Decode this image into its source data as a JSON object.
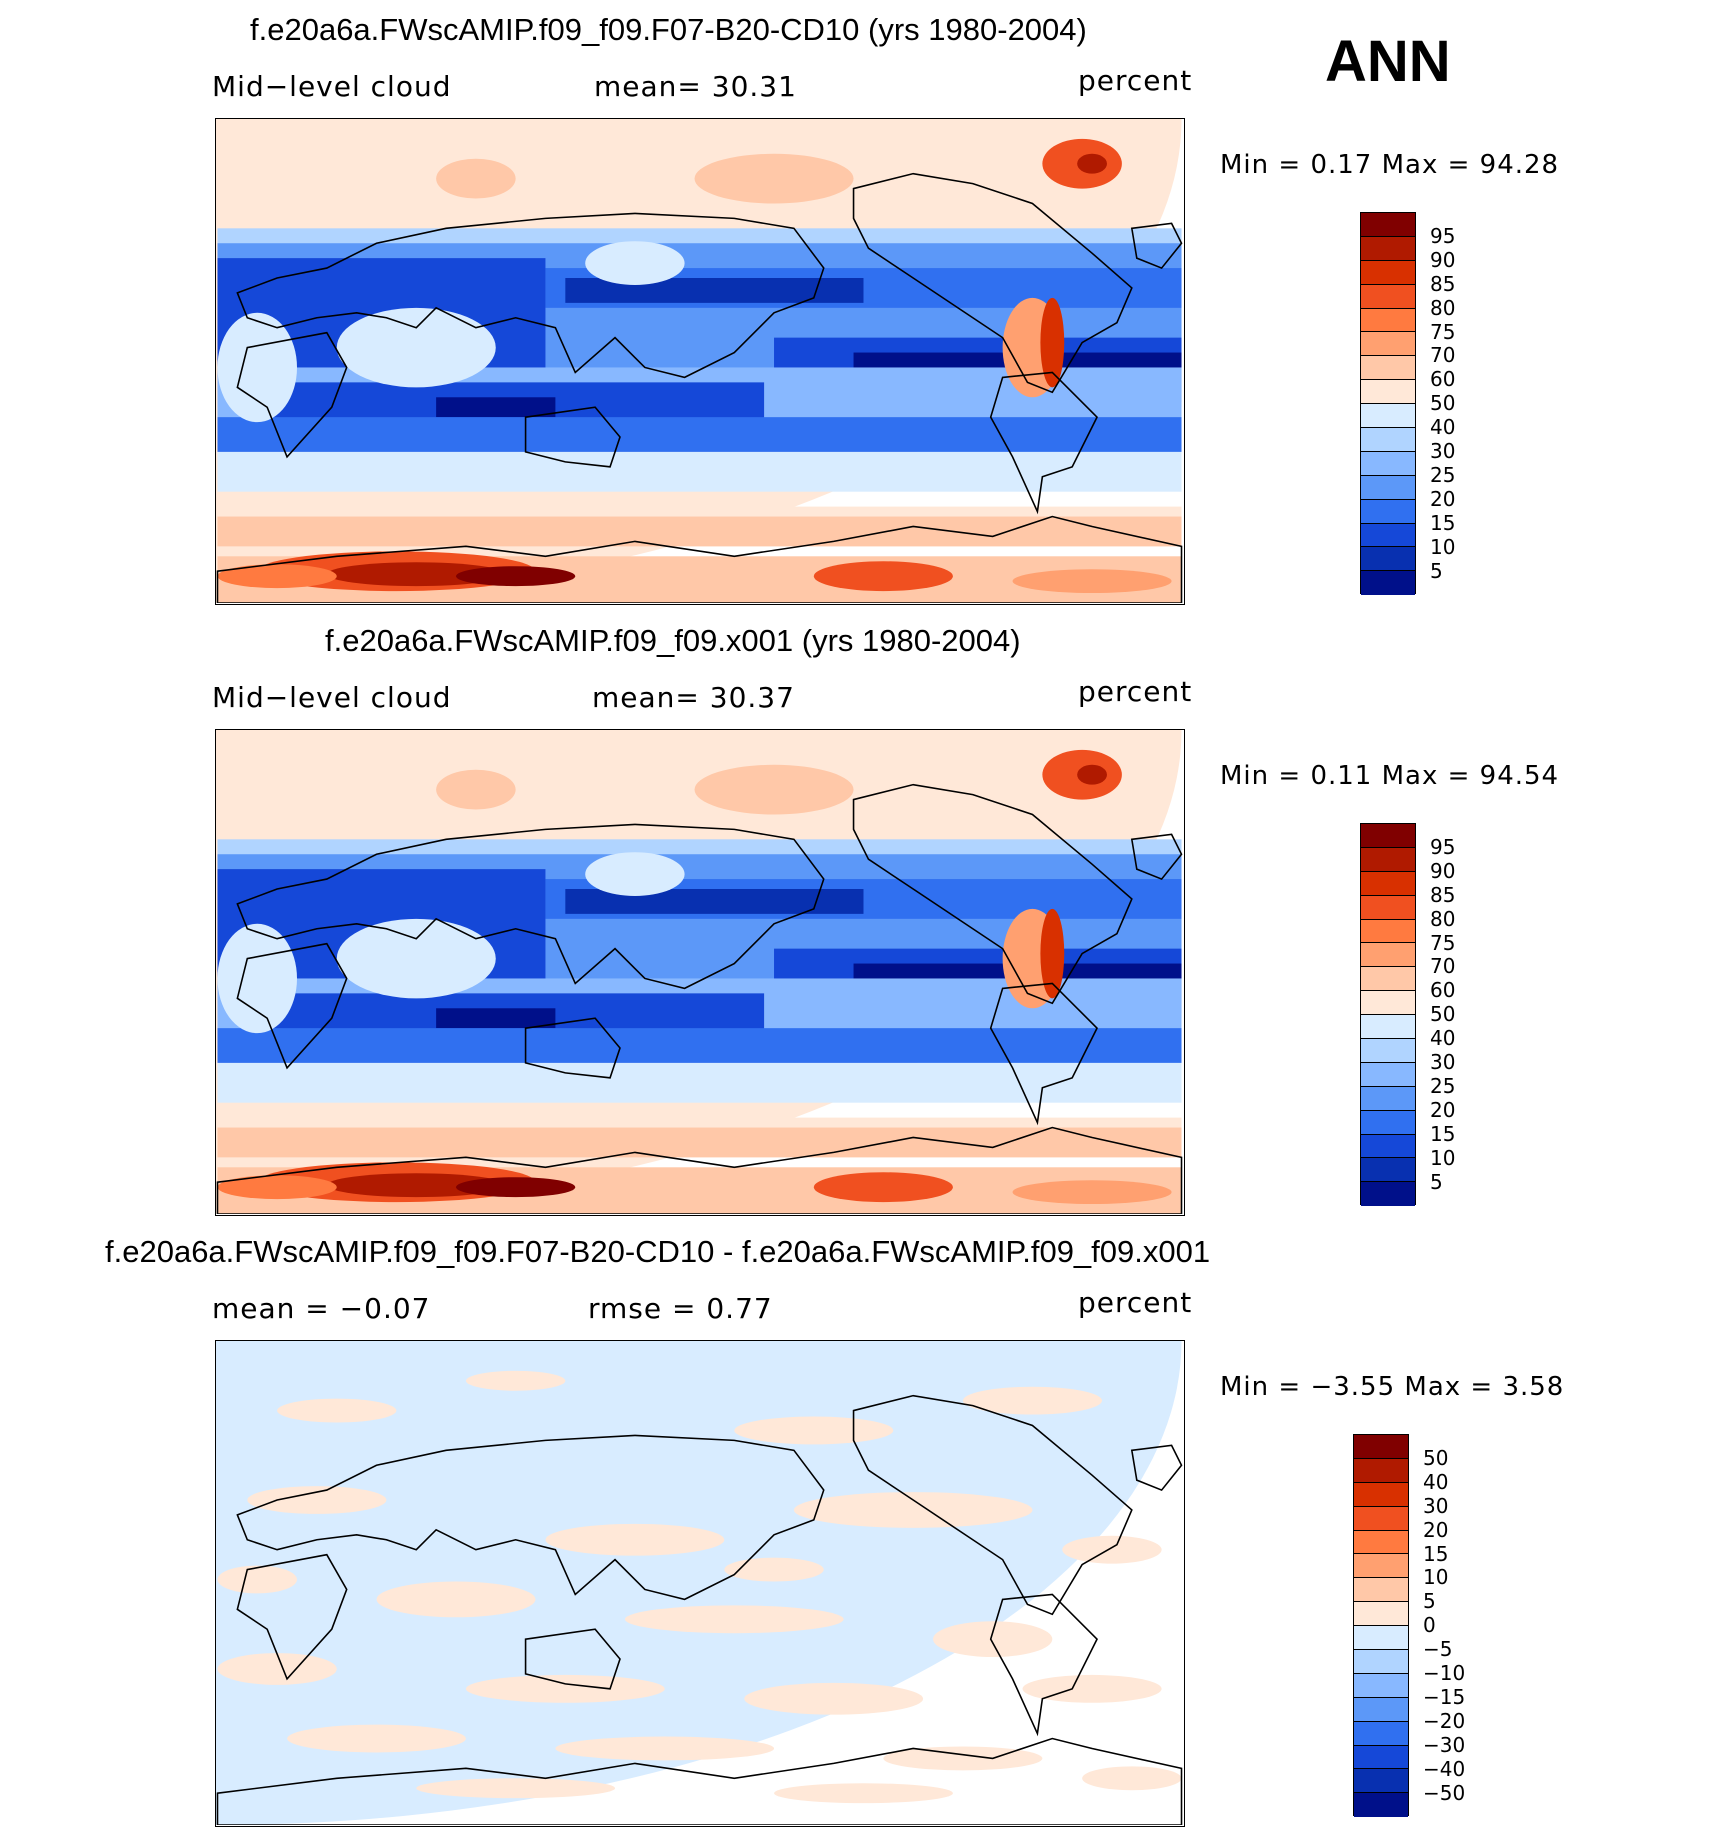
{
  "header": {
    "season": "ANN",
    "unit": "percent"
  },
  "chart_data": [
    {
      "type": "heatmap",
      "title": "f.e20a6a.FWscAMIP.f09_f09.F07-B20-CD10 (yrs 1980-2004)",
      "left_label": "Mid−level cloud",
      "center_label": "mean=   30.31",
      "right_label": "percent",
      "minmax": "Min =    0.17 Max =   94.28",
      "min": 0.17,
      "max": 94.28,
      "mean": 30.31,
      "colorbar": {
        "levels": [
          "95",
          "90",
          "85",
          "80",
          "75",
          "70",
          "60",
          "50",
          "40",
          "30",
          "25",
          "20",
          "15",
          "10",
          "5"
        ],
        "colors": [
          "#800000",
          "#b01a00",
          "#d83000",
          "#f05020",
          "#ff7a40",
          "#ffa070",
          "#ffc8a8",
          "#ffe8d8",
          "#d8ecff",
          "#b0d4ff",
          "#88b8ff",
          "#5c98f8",
          "#3070f0",
          "#1548d8",
          "#0830b0",
          "#00108a"
        ]
      }
    },
    {
      "type": "heatmap",
      "title": "f.e20a6a.FWscAMIP.f09_f09.x001 (yrs 1980-2004)",
      "left_label": "Mid−level cloud",
      "center_label": "mean=   30.37",
      "right_label": "percent",
      "minmax": "Min =    0.11 Max =   94.54",
      "min": 0.11,
      "max": 94.54,
      "mean": 30.37,
      "colorbar": {
        "levels": [
          "95",
          "90",
          "85",
          "80",
          "75",
          "70",
          "60",
          "50",
          "40",
          "30",
          "25",
          "20",
          "15",
          "10",
          "5"
        ],
        "colors": [
          "#800000",
          "#b01a00",
          "#d83000",
          "#f05020",
          "#ff7a40",
          "#ffa070",
          "#ffc8a8",
          "#ffe8d8",
          "#d8ecff",
          "#b0d4ff",
          "#88b8ff",
          "#5c98f8",
          "#3070f0",
          "#1548d8",
          "#0830b0",
          "#00108a"
        ]
      }
    },
    {
      "type": "heatmap",
      "title": "f.e20a6a.FWscAMIP.f09_f09.F07-B20-CD10 - f.e20a6a.FWscAMIP.f09_f09.x001",
      "left_label": "mean =   −0.07",
      "center_label": "rmse =    0.77",
      "right_label": "percent",
      "minmax": "Min =   −3.55 Max =    3.58",
      "min": -3.55,
      "max": 3.58,
      "mean": -0.07,
      "rmse": 0.77,
      "colorbar": {
        "levels": [
          "50",
          "40",
          "30",
          "20",
          "15",
          "10",
          "5",
          "0",
          "−5",
          "−10",
          "−15",
          "−20",
          "−30",
          "−40",
          "−50"
        ],
        "colors": [
          "#800000",
          "#b01a00",
          "#d83000",
          "#f05020",
          "#ff7a40",
          "#ffa070",
          "#ffc8a8",
          "#ffe8d8",
          "#d8ecff",
          "#b0d4ff",
          "#88b8ff",
          "#5c98f8",
          "#3070f0",
          "#1548d8",
          "#0830b0",
          "#00108a"
        ]
      }
    }
  ]
}
